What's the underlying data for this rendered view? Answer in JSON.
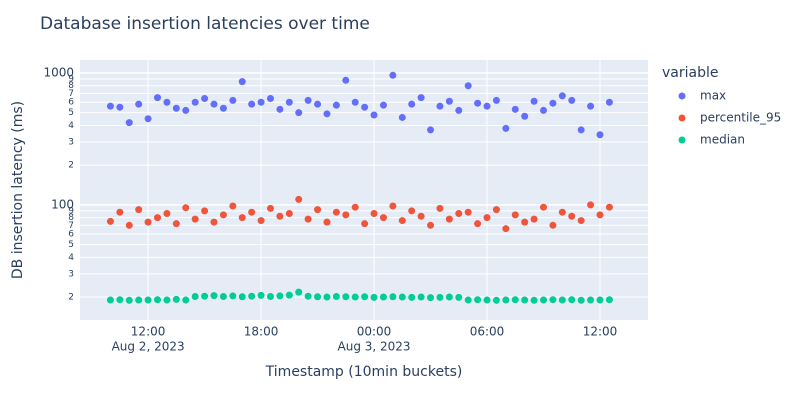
{
  "chart_data": {
    "type": "scatter",
    "title": "Database insertion latencies over time",
    "x_label": "Timestamp (10min buckets)",
    "y_label": "DB insertion latency (ms)",
    "legend_title": "variable",
    "legend": "right",
    "ylog": true,
    "grid": true,
    "x": [
      "2023-08-02 10:00",
      "2023-08-02 10:30",
      "2023-08-02 11:00",
      "2023-08-02 11:30",
      "2023-08-02 12:00",
      "2023-08-02 12:30",
      "2023-08-02 13:00",
      "2023-08-02 13:30",
      "2023-08-02 14:00",
      "2023-08-02 14:30",
      "2023-08-02 15:00",
      "2023-08-02 15:30",
      "2023-08-02 16:00",
      "2023-08-02 16:30",
      "2023-08-02 17:00",
      "2023-08-02 17:30",
      "2023-08-02 18:00",
      "2023-08-02 18:30",
      "2023-08-02 19:00",
      "2023-08-02 19:30",
      "2023-08-02 20:00",
      "2023-08-02 20:30",
      "2023-08-02 21:00",
      "2023-08-02 21:30",
      "2023-08-02 22:00",
      "2023-08-02 22:30",
      "2023-08-02 23:00",
      "2023-08-02 23:30",
      "2023-08-03 00:00",
      "2023-08-03 00:30",
      "2023-08-03 01:00",
      "2023-08-03 01:30",
      "2023-08-03 02:00",
      "2023-08-03 02:30",
      "2023-08-03 03:00",
      "2023-08-03 03:30",
      "2023-08-03 04:00",
      "2023-08-03 04:30",
      "2023-08-03 05:00",
      "2023-08-03 05:30",
      "2023-08-03 06:00",
      "2023-08-03 06:30",
      "2023-08-03 07:00",
      "2023-08-03 07:30",
      "2023-08-03 08:00",
      "2023-08-03 08:30",
      "2023-08-03 09:00",
      "2023-08-03 09:30",
      "2023-08-03 10:00",
      "2023-08-03 10:30",
      "2023-08-03 11:00",
      "2023-08-03 11:30",
      "2023-08-03 12:00",
      "2023-08-03 12:30"
    ],
    "series": [
      {
        "name": "max",
        "color": "#636efa",
        "values": [
          560,
          550,
          420,
          580,
          450,
          650,
          600,
          540,
          520,
          600,
          640,
          580,
          540,
          620,
          860,
          580,
          600,
          640,
          530,
          600,
          500,
          620,
          580,
          490,
          570,
          880,
          600,
          550,
          480,
          570,
          960,
          460,
          580,
          650,
          370,
          560,
          610,
          520,
          800,
          590,
          560,
          620,
          380,
          530,
          470,
          610,
          520,
          590,
          670,
          620,
          370,
          560,
          340,
          600
        ]
      },
      {
        "name": "percentile_95",
        "color": "#EF553B",
        "values": [
          75,
          88,
          70,
          92,
          74,
          80,
          86,
          72,
          95,
          78,
          90,
          74,
          84,
          98,
          80,
          88,
          76,
          94,
          82,
          86,
          110,
          78,
          92,
          74,
          88,
          84,
          96,
          72,
          86,
          80,
          98,
          76,
          90,
          82,
          70,
          94,
          78,
          86,
          88,
          72,
          80,
          92,
          66,
          84,
          74,
          78,
          96,
          70,
          88,
          82,
          76,
          100,
          84,
          96
        ]
      },
      {
        "name": "median",
        "color": "#00cc96",
        "values": [
          19,
          19.1,
          18.9,
          19,
          19,
          19.1,
          19,
          19.2,
          19,
          20.2,
          20.3,
          20.5,
          20.2,
          20.4,
          20.1,
          20.3,
          20.6,
          20.2,
          20.4,
          20.7,
          21.8,
          20.3,
          20.1,
          20,
          20.2,
          20.1,
          20,
          20.1,
          19.9,
          20,
          20.1,
          20,
          19.9,
          20,
          19.8,
          19.9,
          20,
          19.9,
          19,
          19.1,
          19,
          18.9,
          19,
          19.1,
          19,
          18.9,
          19,
          19.1,
          19,
          19.1,
          18.9,
          19,
          19,
          19.1
        ]
      }
    ],
    "xlim": [
      "2023-08-02 08:23",
      "2023-08-03 14:33"
    ],
    "xticks": [
      {
        "value": "2023-08-02 12:00",
        "label": "12:00"
      },
      {
        "value": "2023-08-02 18:00",
        "label": "18:00"
      },
      {
        "value": "2023-08-03 00:00",
        "label": "00:00"
      },
      {
        "value": "2023-08-03 06:00",
        "label": "06:00"
      },
      {
        "value": "2023-08-03 12:00",
        "label": "12:00"
      }
    ],
    "xtick_dates": [
      {
        "value": "2023-08-02 12:00",
        "label": "Aug 2, 2023"
      },
      {
        "value": "2023-08-03 00:00",
        "label": "Aug 3, 2023"
      }
    ],
    "ylim": [
      13.4,
      1254
    ],
    "yticks": [
      {
        "value": 20,
        "label": "2"
      },
      {
        "value": 30,
        "label": "3"
      },
      {
        "value": 40,
        "label": "4"
      },
      {
        "value": 50,
        "label": "5"
      },
      {
        "value": 60,
        "label": "6"
      },
      {
        "value": 70,
        "label": "7"
      },
      {
        "value": 80,
        "label": "8"
      },
      {
        "value": 90,
        "label": "9"
      },
      100,
      {
        "value": 200,
        "label": "2"
      },
      {
        "value": 300,
        "label": "3"
      },
      {
        "value": 400,
        "label": "4"
      },
      {
        "value": 500,
        "label": "5"
      },
      {
        "value": 600,
        "label": "6"
      },
      {
        "value": 700,
        "label": "7"
      },
      {
        "value": 800,
        "label": "8"
      },
      {
        "value": 900,
        "label": "9"
      },
      1000
    ]
  }
}
